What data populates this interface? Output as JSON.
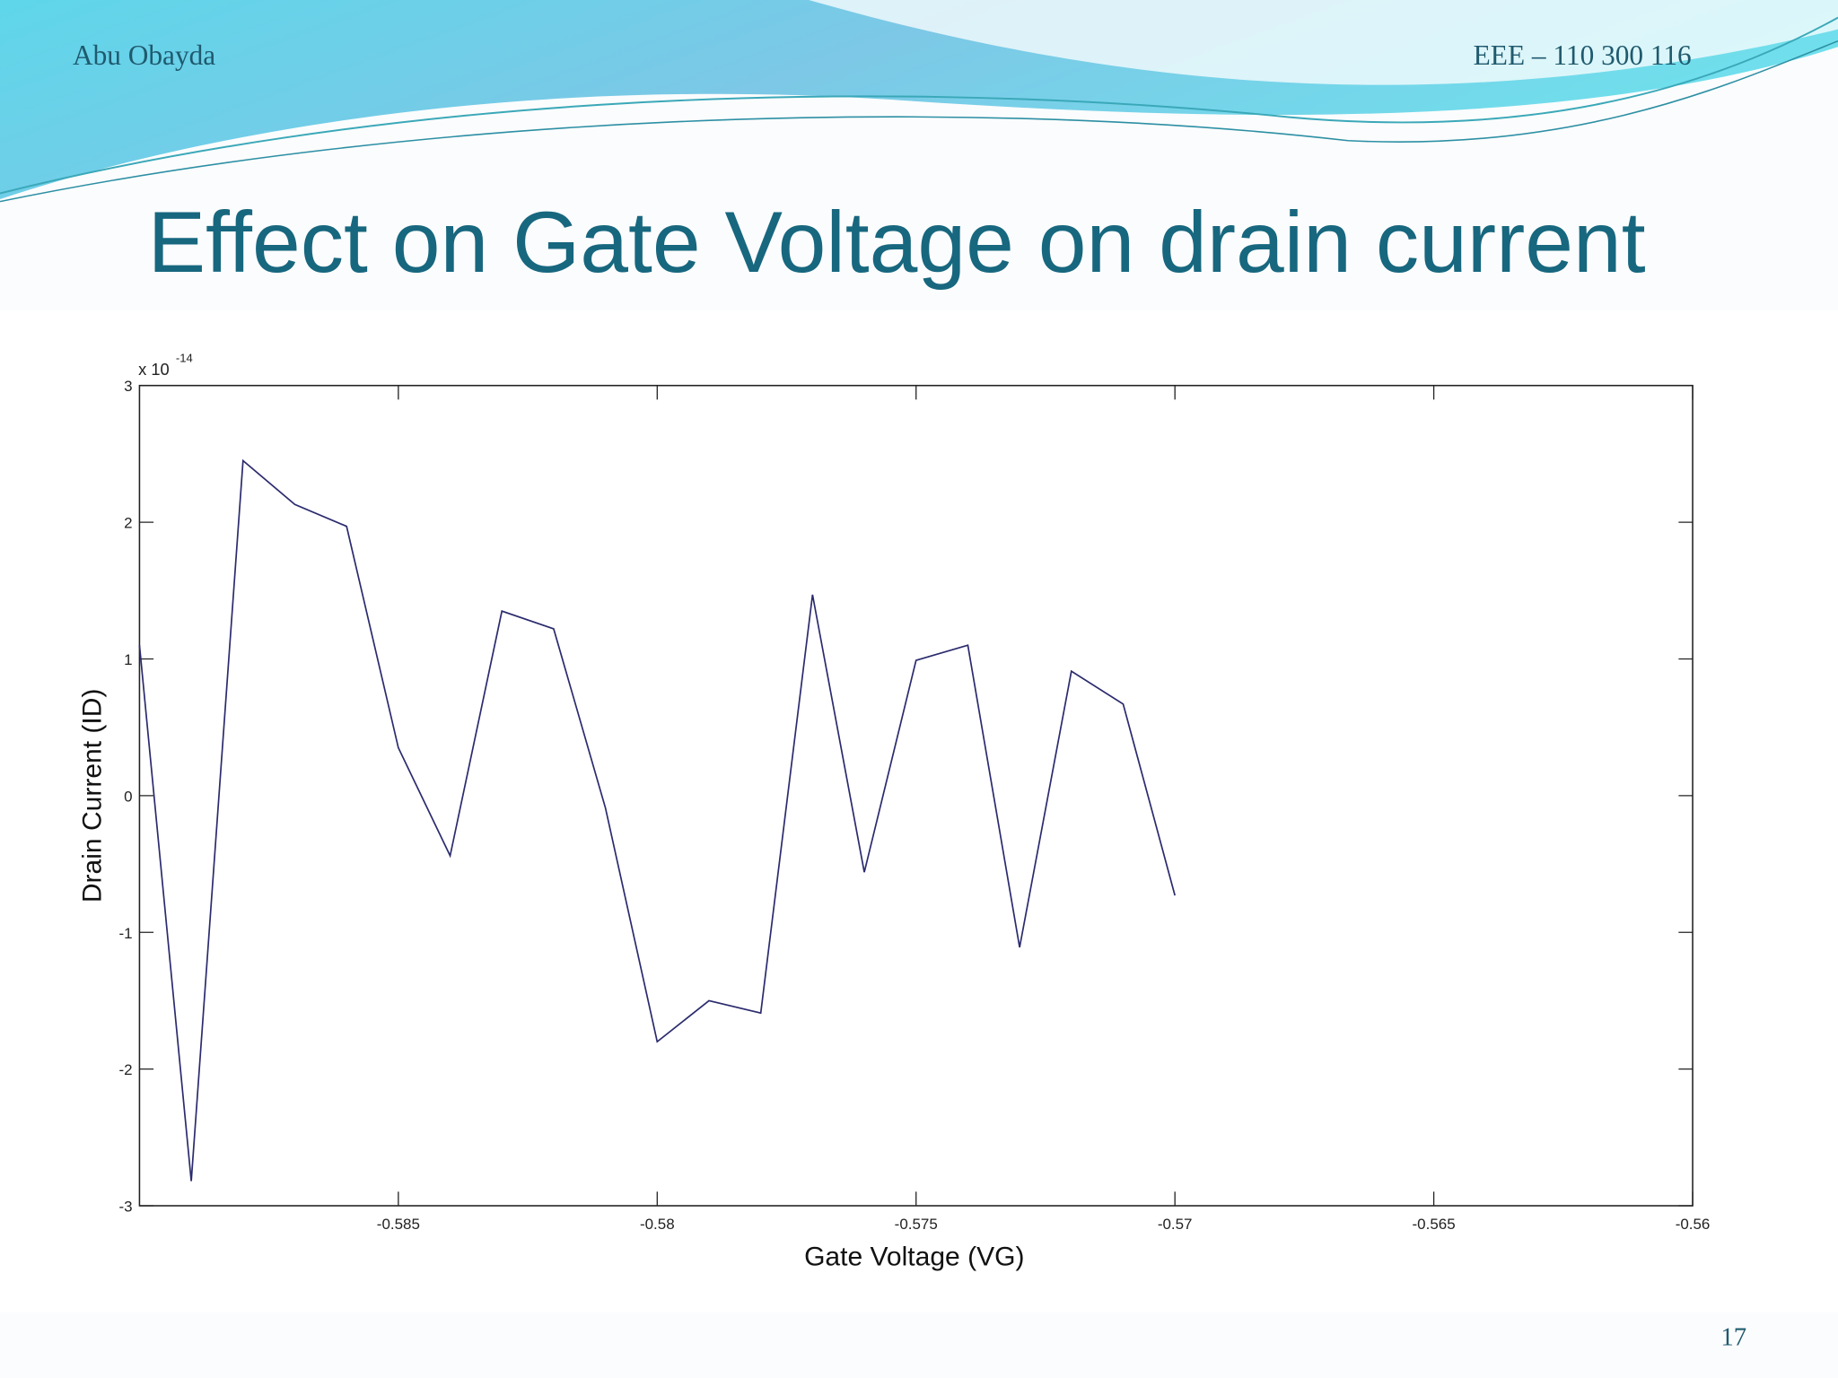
{
  "header": {
    "author": "Abu Obayda",
    "course": "EEE – 110 300 116"
  },
  "slide_number": "17",
  "chart_data": {
    "type": "line",
    "title": "Effect on Gate Voltage on drain current",
    "x_label": "Gate Voltage (VG)",
    "y_label": "Drain Current (ID)",
    "y_multiplier": {
      "base": "x 10",
      "exponent": "-14"
    },
    "x": [
      -0.59,
      -0.589,
      -0.588,
      -0.587,
      -0.586,
      -0.585,
      -0.584,
      -0.583,
      -0.582,
      -0.581,
      -0.58,
      -0.579,
      -0.578,
      -0.577,
      -0.576,
      -0.575,
      -0.574,
      -0.573,
      -0.572,
      -0.571,
      -0.57
    ],
    "series": [
      {
        "color": "#2b2b6e",
        "values": [
          1.1,
          -2.82,
          2.45,
          2.13,
          1.97,
          0.35,
          -0.44,
          1.35,
          1.22,
          -0.09,
          -1.8,
          -1.5,
          -1.59,
          1.47,
          -0.56,
          0.99,
          1.1,
          -1.11,
          0.91,
          0.67,
          -0.73
        ]
      }
    ],
    "xlim": [
      -0.59,
      -0.56
    ],
    "xticks": [
      -0.585,
      -0.58,
      -0.575,
      -0.57,
      -0.565,
      -0.56
    ],
    "ylim": [
      -3,
      3
    ],
    "yticks": [
      -3,
      -2,
      -1,
      0,
      1,
      2,
      3
    ],
    "grid": false
  }
}
